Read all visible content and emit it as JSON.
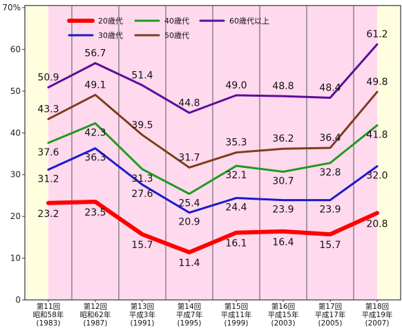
{
  "chart_data": {
    "type": "line",
    "ylim": [
      0,
      70
    ],
    "y_unit": "%",
    "y_ticks": [
      "0",
      "10",
      "20",
      "30",
      "40",
      "50",
      "60",
      "70%"
    ],
    "categories": [
      {
        "session": "第11回",
        "era": "昭和58年",
        "year": "(1983)"
      },
      {
        "session": "第12回",
        "era": "昭和62年",
        "year": "(1987)"
      },
      {
        "session": "第13回",
        "era": "平成3年",
        "year": "(1991)"
      },
      {
        "session": "第14回",
        "era": "平成7年",
        "year": "(1995)"
      },
      {
        "session": "第15回",
        "era": "平成11年",
        "year": "(1999)"
      },
      {
        "session": "第16回",
        "era": "平成15年",
        "year": "(2003)"
      },
      {
        "session": "第17回",
        "era": "平成17年",
        "year": "(2005)"
      },
      {
        "session": "第18回",
        "era": "平成19年",
        "year": "(2007)"
      }
    ],
    "series": [
      {
        "name": "20歳代",
        "color": "#ff0000",
        "values": [
          23.2,
          23.5,
          15.7,
          11.4,
          16.1,
          16.4,
          15.7,
          20.8
        ],
        "labels": [
          "23.2",
          "23.5",
          "15.7",
          "11.4",
          "16.1",
          "16.4",
          "15.7",
          "20.8"
        ]
      },
      {
        "name": "30歳代",
        "color": "#1a1acc",
        "values": [
          31.2,
          36.3,
          27.6,
          20.9,
          24.4,
          23.9,
          23.9,
          32.0
        ],
        "labels": [
          "31.2",
          "36.3",
          "27.6",
          "20.9",
          "24.4",
          "23.9",
          "23.9",
          "32.0"
        ]
      },
      {
        "name": "40歳代",
        "color": "#1e9a1e",
        "values": [
          37.6,
          42.3,
          31.3,
          25.4,
          32.1,
          30.7,
          32.8,
          41.8
        ],
        "labels": [
          "37.6",
          "42.3",
          "31.3",
          "25.4",
          "32.1",
          "30.7",
          "32.8",
          "41.8"
        ]
      },
      {
        "name": "50歳代",
        "color": "#7a3e1a",
        "values": [
          43.3,
          49.1,
          39.5,
          31.7,
          35.3,
          36.2,
          36.4,
          49.8
        ],
        "labels": [
          "43.3",
          "49.1",
          "39.5",
          "31.7",
          "35.3",
          "36.2",
          "36.4",
          "49.8"
        ]
      },
      {
        "name": "60歳代以上",
        "color": "#5a0d9a",
        "values": [
          50.9,
          56.7,
          51.4,
          44.8,
          49.0,
          48.8,
          48.4,
          61.2
        ],
        "labels": [
          "50.9",
          "56.7",
          "51.4",
          "44.8",
          "49.0",
          "48.8",
          "48.4",
          "61.2"
        ]
      }
    ],
    "legend_position": "top-left",
    "grid": true,
    "background_colors": {
      "outer": "#ffffe0",
      "inner": "#ffd9ee"
    }
  }
}
